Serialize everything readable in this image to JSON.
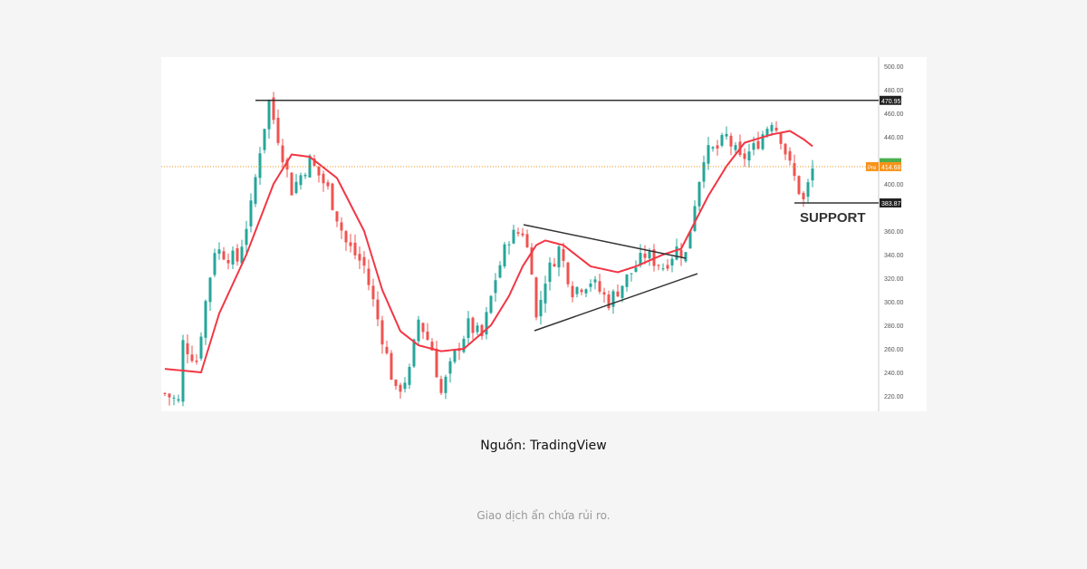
{
  "chart_data": {
    "type": "candlestick",
    "yticks": [
      500,
      480,
      460,
      440,
      400,
      360,
      340,
      320,
      300,
      280,
      260,
      240,
      220
    ],
    "ylim": [
      210,
      505
    ],
    "close_path": [
      [
        0,
        222
      ],
      [
        3,
        215
      ],
      [
        4,
        265
      ],
      [
        7,
        250
      ],
      [
        9,
        300
      ],
      [
        11,
        345
      ],
      [
        16,
        335
      ],
      [
        19,
        380
      ],
      [
        21,
        430
      ],
      [
        23,
        470
      ],
      [
        25,
        440
      ],
      [
        28,
        395
      ],
      [
        32,
        420
      ],
      [
        36,
        395
      ],
      [
        40,
        350
      ],
      [
        44,
        330
      ],
      [
        48,
        270
      ],
      [
        51,
        222
      ],
      [
        54,
        240
      ],
      [
        56,
        285
      ],
      [
        59,
        260
      ],
      [
        61,
        222
      ],
      [
        64,
        255
      ],
      [
        67,
        280
      ],
      [
        70,
        270
      ],
      [
        73,
        320
      ],
      [
        76,
        355
      ],
      [
        79,
        360
      ],
      [
        81,
        330
      ],
      [
        82,
        285
      ],
      [
        84,
        320
      ],
      [
        87,
        345
      ],
      [
        90,
        310
      ],
      [
        94,
        318
      ],
      [
        98,
        300
      ],
      [
        102,
        320
      ],
      [
        106,
        340
      ],
      [
        110,
        330
      ],
      [
        113,
        345
      ],
      [
        115,
        340
      ],
      [
        117,
        385
      ],
      [
        119,
        425
      ],
      [
        122,
        430
      ],
      [
        124,
        440
      ],
      [
        127,
        420
      ],
      [
        130,
        430
      ],
      [
        134,
        455
      ],
      [
        136,
        440
      ],
      [
        138,
        415
      ],
      [
        140,
        395
      ],
      [
        141,
        385
      ],
      [
        143,
        412
      ]
    ],
    "moving_average": [
      [
        0,
        243
      ],
      [
        8,
        240
      ],
      [
        12,
        290
      ],
      [
        18,
        340
      ],
      [
        24,
        400
      ],
      [
        28,
        425
      ],
      [
        32,
        423
      ],
      [
        38,
        405
      ],
      [
        44,
        360
      ],
      [
        48,
        310
      ],
      [
        52,
        275
      ],
      [
        56,
        263
      ],
      [
        61,
        258
      ],
      [
        66,
        260
      ],
      [
        72,
        280
      ],
      [
        76,
        305
      ],
      [
        79,
        330
      ],
      [
        82,
        348
      ],
      [
        84,
        352
      ],
      [
        88,
        348
      ],
      [
        94,
        330
      ],
      [
        100,
        325
      ],
      [
        104,
        330
      ],
      [
        110,
        340
      ],
      [
        114,
        345
      ],
      [
        116,
        360
      ],
      [
        120,
        390
      ],
      [
        124,
        415
      ],
      [
        128,
        435
      ],
      [
        134,
        442
      ],
      [
        138,
        445
      ],
      [
        141,
        438
      ],
      [
        143,
        432
      ]
    ],
    "resistance": {
      "value": 470.95,
      "label": "470.95",
      "from": 20
    },
    "support": {
      "value": 383.87,
      "label": "383.87",
      "from": 139,
      "text": "SUPPORT"
    },
    "current_price": {
      "value": 414.68,
      "label": "414.68",
      "tag": "Pre"
    },
    "triangle_upper": [
      [
        79.2,
        365.4
      ],
      [
        115,
        336.9
      ]
    ],
    "triangle_lower": [
      [
        81.6,
        275.4
      ],
      [
        117.6,
        323.8
      ]
    ],
    "colors": {
      "up": "#26a69a",
      "down": "#ef5350",
      "ma": "#f23645",
      "price": "#f7931a",
      "line": "#333333"
    }
  },
  "caption": "Nguồn: TradingView",
  "footer": "Giao dịch ẩn chứa rủi ro."
}
